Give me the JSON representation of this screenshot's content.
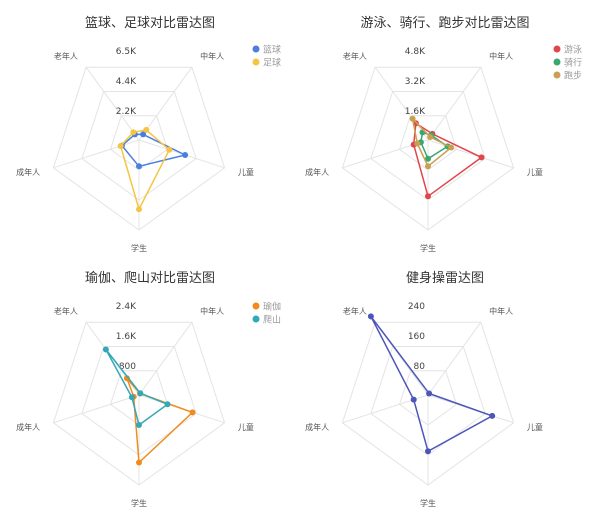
{
  "chart_data": [
    {
      "type": "radar",
      "title": "篮球、足球对比雷达图",
      "axes": [
        "中年人",
        "儿童",
        "学生",
        "成年人",
        "老年人"
      ],
      "ticks": [
        "2.2K",
        "4.4K",
        "6.5K"
      ],
      "range": [
        0,
        6500
      ],
      "series": [
        {
          "name": "篮球",
          "color": "#4a7fe0",
          "values": [
            500,
            3500,
            1900,
            1300,
            500
          ]
        },
        {
          "name": "足球",
          "color": "#f5c542",
          "values": [
            900,
            2300,
            5000,
            1400,
            700
          ]
        }
      ]
    },
    {
      "type": "radar",
      "title": "游泳、骑行、跑步对比雷达图",
      "axes": [
        "中年人",
        "儿童",
        "学生",
        "成年人",
        "老年人"
      ],
      "ticks": [
        "1.6K",
        "3.2K",
        "4.8K"
      ],
      "range": [
        0,
        4800
      ],
      "series": [
        {
          "name": "游泳",
          "color": "#e0464c",
          "values": [
            400,
            3000,
            3000,
            800,
            1100
          ]
        },
        {
          "name": "骑行",
          "color": "#3aa86e",
          "values": [
            300,
            1100,
            1000,
            400,
            500
          ]
        },
        {
          "name": "跑步",
          "color": "#c9a050",
          "values": [
            200,
            1300,
            1400,
            600,
            1400
          ]
        }
      ]
    },
    {
      "type": "radar",
      "title": "瑜伽、爬山对比雷达图",
      "axes": [
        "中年人",
        "儿童",
        "学生",
        "成年人",
        "老年人"
      ],
      "ticks": [
        "800",
        "1.6K",
        "2.4K"
      ],
      "range": [
        0,
        2400
      ],
      "series": [
        {
          "name": "瑜伽",
          "color": "#f08c1e",
          "values": [
            50,
            1500,
            1800,
            150,
            550
          ]
        },
        {
          "name": "爬山",
          "color": "#34a7b8",
          "values": [
            60,
            800,
            800,
            200,
            1500
          ]
        }
      ]
    },
    {
      "type": "radar",
      "title": "健身操雷达图",
      "axes": [
        "中年人",
        "儿童",
        "学生",
        "成年人",
        "老年人"
      ],
      "ticks": [
        "80",
        "160",
        "240"
      ],
      "range": [
        0,
        240
      ],
      "series": [
        {
          "name": "",
          "color": "#4c56b8",
          "values": [
            5,
            180,
            150,
            40,
            260
          ]
        }
      ]
    }
  ]
}
